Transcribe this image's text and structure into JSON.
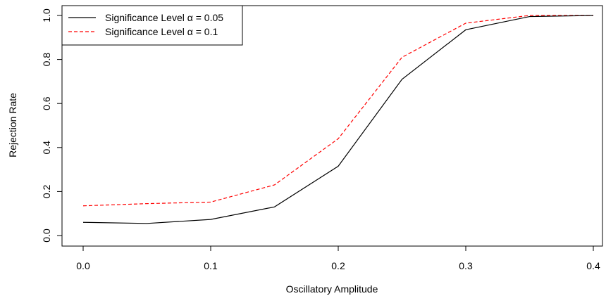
{
  "chart_data": {
    "type": "line",
    "title": "",
    "xlabel": "Oscillatory Amplitude",
    "ylabel": "Rejection Rate",
    "xlim": [
      0.0,
      0.4
    ],
    "ylim": [
      0.0,
      1.0
    ],
    "x_ticks": [
      "0.0",
      "0.1",
      "0.2",
      "0.3",
      "0.4"
    ],
    "y_ticks": [
      "0.0",
      "0.2",
      "0.4",
      "0.6",
      "0.8",
      "1.0"
    ],
    "grid": false,
    "legend_position": "top-left",
    "x": [
      0.0,
      0.05,
      0.1,
      0.15,
      0.2,
      0.25,
      0.3,
      0.35,
      0.4
    ],
    "series": [
      {
        "name": "Significance Level α = 0.05",
        "values": [
          0.06,
          0.055,
          0.073,
          0.13,
          0.315,
          0.71,
          0.935,
          0.995,
          1.0
        ],
        "color": "#000000",
        "dash": "solid"
      },
      {
        "name": "Significance Level α = 0.1",
        "values": [
          0.135,
          0.145,
          0.152,
          0.23,
          0.44,
          0.81,
          0.965,
          1.0,
          1.0
        ],
        "color": "#ff0000",
        "dash": "dashed"
      }
    ]
  }
}
